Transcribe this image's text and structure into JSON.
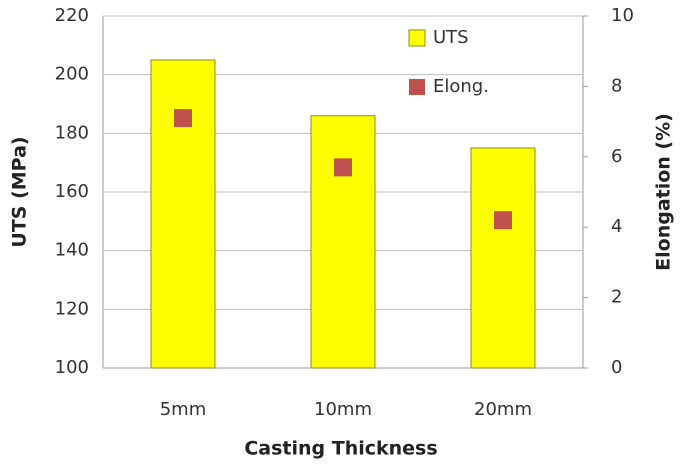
{
  "chart_data": {
    "type": "bar",
    "x_label": "Casting Thickness",
    "y_label": "UTS (MPa)",
    "y2_label": "Elongation (%)",
    "categories": [
      "5mm",
      "10mm",
      "20mm"
    ],
    "series": [
      {
        "name": "UTS",
        "type": "bar",
        "color": "#ffff00",
        "values": [
          205,
          186,
          175
        ]
      },
      {
        "name": "Elong.",
        "type": "scatter",
        "axis": "y2",
        "color": "#c0504d",
        "values": [
          7.1,
          5.7,
          4.2
        ]
      }
    ],
    "ylim": [
      100,
      220
    ],
    "yticks": [
      100,
      120,
      140,
      160,
      180,
      200,
      220
    ],
    "y2lim": [
      0,
      10
    ],
    "y2ticks": [
      0,
      2,
      4,
      6,
      8,
      10
    ],
    "grid": true,
    "legend": "upper right"
  }
}
